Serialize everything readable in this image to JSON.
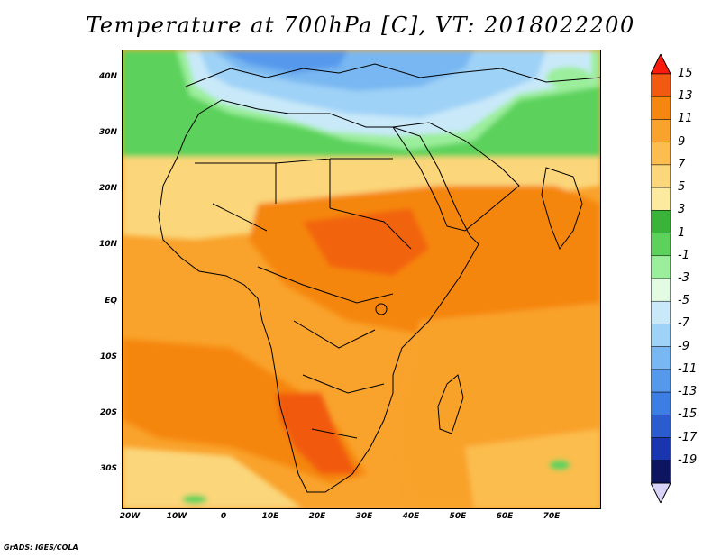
{
  "title": "Temperature at 700hPa [C], VT: 2018022200",
  "footer": "GrADS: IGES/COLA",
  "axes": {
    "lat_labels": [
      "40N",
      "30N",
      "20N",
      "10N",
      "EQ",
      "10S",
      "20S",
      "30S"
    ],
    "lon_labels": [
      "20W",
      "10W",
      "0",
      "10E",
      "20E",
      "30E",
      "40E",
      "50E",
      "60E",
      "70E"
    ]
  },
  "colorbar": {
    "labels": [
      "15",
      "13",
      "11",
      "9",
      "7",
      "5",
      "3",
      "1",
      "-1",
      "-3",
      "-5",
      "-7",
      "-9",
      "-11",
      "-13",
      "-15",
      "-17",
      "-19"
    ],
    "colors": [
      "#fb1b0c",
      "#f15a10",
      "#f5860f",
      "#f9a22c",
      "#fbbd4d",
      "#fbd67a",
      "#fbeaa0",
      "#39b339",
      "#5cd25c",
      "#9bee9b",
      "#e2fbe2",
      "#c9e9f9",
      "#9fd2f7",
      "#78b7f1",
      "#5699ec",
      "#3c7ee4",
      "#2a5bcf",
      "#1a35b0",
      "#0d1560",
      "#d9d2f9"
    ]
  }
}
